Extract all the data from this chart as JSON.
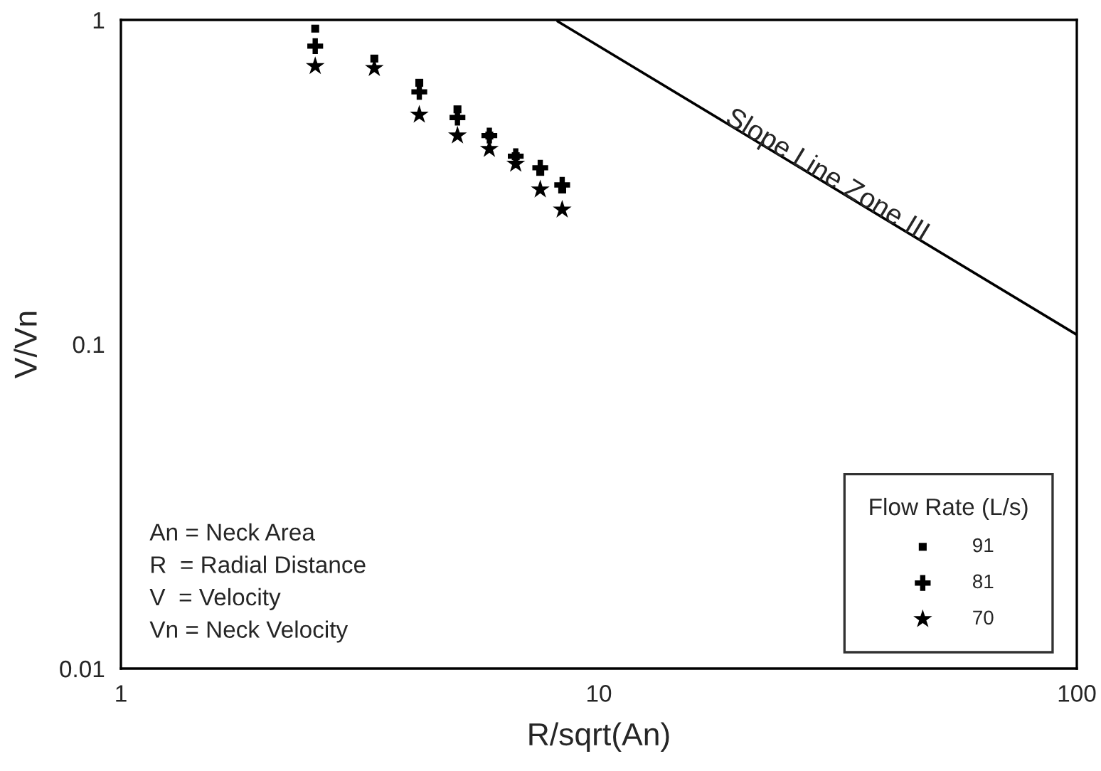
{
  "chart_data": {
    "type": "scatter",
    "xlabel": "R/sqrt(An)",
    "ylabel": "V/Vn",
    "log": "xy",
    "xlim": [
      1,
      100
    ],
    "ylim": [
      0.01,
      1
    ],
    "xticks": [
      1,
      10,
      100
    ],
    "yticks": [
      0.01,
      0.1,
      1
    ],
    "x": [
      2.55,
      3.39,
      4.21,
      5.06,
      5.9,
      6.7,
      7.54,
      8.38
    ],
    "series": [
      {
        "name": "91",
        "color": "#000000",
        "marker": "square",
        "values": [
          0.94,
          0.76,
          0.64,
          0.53,
          0.44,
          0.38,
          0.34,
          0.3
        ]
      },
      {
        "name": "81",
        "color": "#000000",
        "marker": "cross",
        "values": [
          0.83,
          null,
          0.6,
          0.5,
          0.44,
          0.38,
          0.35,
          0.31
        ]
      },
      {
        "name": "70",
        "color": "#000000",
        "marker": "star",
        "values": [
          0.72,
          0.71,
          0.51,
          0.44,
          0.4,
          0.36,
          0.3,
          0.26
        ]
      },
      {
        "type": "line",
        "color": "#000000",
        "x": [
          8.2,
          100
        ],
        "values": [
          0.99,
          0.107
        ]
      }
    ],
    "legend": "bottom right",
    "legend_title": "Flow Rate (L/s)",
    "grid": false,
    "annotations": [
      {
        "text": "Slope Line Zone III",
        "x": 30,
        "y": 0.33
      },
      "An = Neck Area",
      "R  = Radial Distance",
      "V  = Velocity",
      "Vn = Neck Velocity"
    ]
  }
}
